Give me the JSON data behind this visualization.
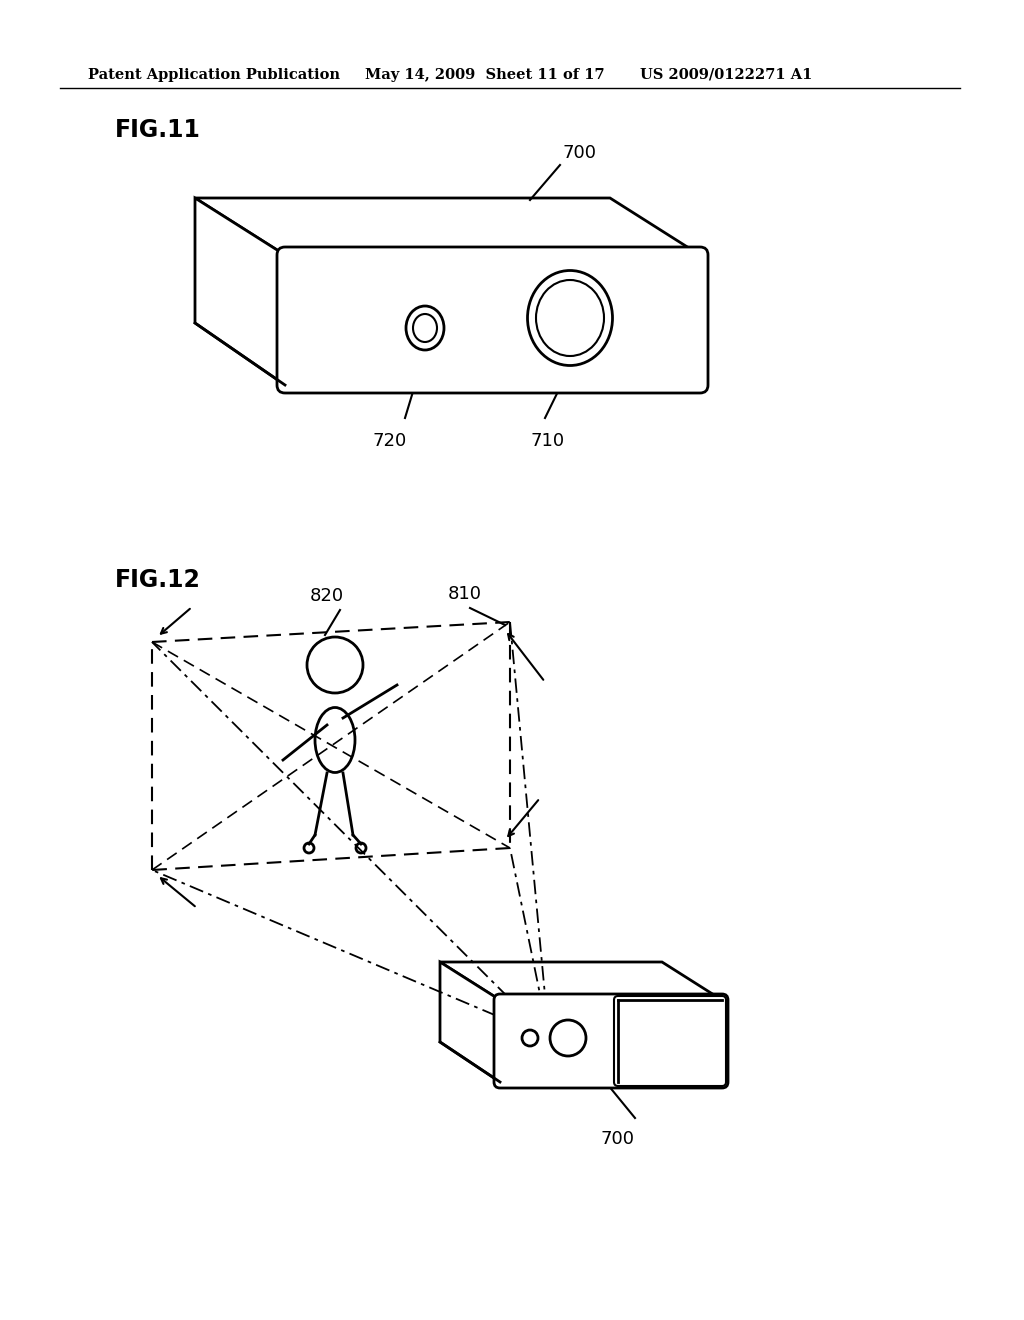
{
  "background_color": "#ffffff",
  "header_text": "Patent Application Publication",
  "header_date": "May 14, 2009  Sheet 11 of 17",
  "header_patent": "US 2009/0122271 A1",
  "fig11_label": "FIG.11",
  "fig12_label": "FIG.12",
  "label_700_fig11": "700",
  "label_710": "710",
  "label_720": "720",
  "label_820": "820",
  "label_810": "810",
  "label_700_fig12": "700"
}
